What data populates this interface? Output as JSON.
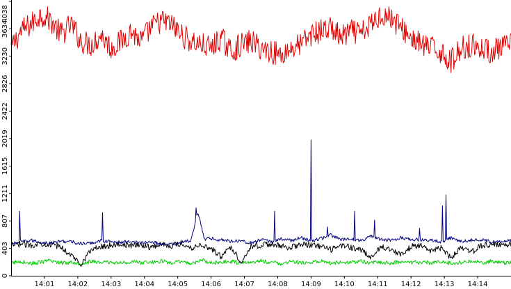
{
  "chart_data": {
    "type": "line",
    "title": "",
    "xlabel": "",
    "ylabel": "",
    "x_unit": "minutes",
    "xlim": [
      0.0,
      15.0
    ],
    "ylim": [
      0,
      4038
    ],
    "grid": false,
    "legend": "none",
    "x_tick_labels": [
      "14:01",
      "14:02",
      "14:03",
      "14:04",
      "14:05",
      "14:06",
      "14:07",
      "14:08",
      "14:09",
      "14:10",
      "14:11",
      "14:12",
      "14:13",
      "14:14"
    ],
    "x_tick_values": [
      1,
      2,
      3,
      4,
      5,
      6,
      7,
      8,
      9,
      10,
      11,
      12,
      13,
      14
    ],
    "y_tick_labels": [
      "0",
      "403",
      "807",
      "1211",
      "1615",
      "2019",
      "2422",
      "2826",
      "3230",
      "3634",
      "4038"
    ],
    "y_tick_values": [
      0,
      403,
      807,
      1211,
      1615,
      2019,
      2422,
      2826,
      3230,
      3634,
      4038
    ],
    "series_colors": [
      "#e00000",
      "#000080",
      "#000000",
      "#00cc00"
    ],
    "series": [
      {
        "color": "#e00000",
        "x": [
          0.0,
          0.3,
          0.6,
          0.9,
          1.2,
          1.5,
          1.8,
          2.1,
          2.4,
          2.7,
          3.0,
          3.3,
          3.6,
          3.9,
          4.2,
          4.5,
          4.8,
          5.1,
          5.4,
          5.7,
          6.0,
          6.3,
          6.6,
          6.9,
          7.2,
          7.5,
          7.8,
          8.1,
          8.4,
          8.7,
          9.0,
          9.3,
          9.6,
          9.9,
          10.2,
          10.5,
          10.8,
          11.1,
          11.4,
          11.7,
          12.0,
          12.3,
          12.6,
          12.9,
          13.2,
          13.5,
          13.8,
          14.1,
          14.4,
          14.7,
          15.0
        ],
        "values": [
          3350,
          3600,
          3700,
          3850,
          3750,
          3550,
          3700,
          3450,
          3400,
          3550,
          3350,
          3450,
          3600,
          3450,
          3650,
          3750,
          3700,
          3550,
          3450,
          3400,
          3350,
          3500,
          3300,
          3400,
          3450,
          3350,
          3300,
          3250,
          3350,
          3400,
          3550,
          3600,
          3650,
          3500,
          3600,
          3550,
          3700,
          3850,
          3800,
          3650,
          3500,
          3400,
          3350,
          3300,
          3150,
          3350,
          3400,
          3350,
          3300,
          3350,
          3400
        ]
      },
      {
        "color": "#000080",
        "x": [
          0.0,
          0.3,
          0.6,
          0.9,
          1.2,
          1.5,
          1.8,
          2.1,
          2.4,
          2.7,
          3.0,
          3.3,
          3.6,
          3.9,
          4.2,
          4.5,
          4.8,
          5.1,
          5.4,
          5.6,
          5.8,
          6.0,
          6.3,
          6.6,
          6.9,
          7.2,
          7.5,
          7.8,
          8.1,
          8.4,
          8.7,
          9.0,
          9.3,
          9.6,
          9.9,
          10.2,
          10.5,
          10.8,
          11.1,
          11.4,
          11.7,
          12.0,
          12.3,
          12.6,
          12.9,
          13.2,
          13.5,
          13.8,
          14.1,
          14.4,
          14.7,
          15.0
        ],
        "values": [
          470,
          500,
          520,
          490,
          480,
          510,
          500,
          470,
          480,
          520,
          500,
          490,
          510,
          480,
          500,
          470,
          460,
          490,
          520,
          950,
          540,
          550,
          530,
          510,
          520,
          480,
          530,
          500,
          540,
          520,
          560,
          510,
          550,
          600,
          530,
          540,
          520,
          580,
          530,
          520,
          560,
          540,
          530,
          520,
          500,
          560,
          510,
          520,
          530,
          500,
          510,
          520
        ],
        "spikes": [
          {
            "x": 0.25,
            "value": 950
          },
          {
            "x": 2.75,
            "value": 930
          },
          {
            "x": 5.55,
            "value": 1000
          },
          {
            "x": 7.9,
            "value": 950
          },
          {
            "x": 9.0,
            "value": 2000
          },
          {
            "x": 9.5,
            "value": 720
          },
          {
            "x": 10.3,
            "value": 950
          },
          {
            "x": 10.9,
            "value": 820
          },
          {
            "x": 12.25,
            "value": 700
          },
          {
            "x": 12.95,
            "value": 1030
          },
          {
            "x": 13.05,
            "value": 1190
          }
        ]
      },
      {
        "color": "#000000",
        "x": [
          0.0,
          0.3,
          0.6,
          0.9,
          1.2,
          1.5,
          1.8,
          2.1,
          2.4,
          2.7,
          3.0,
          3.3,
          3.6,
          3.9,
          4.2,
          4.5,
          4.8,
          5.1,
          5.4,
          5.7,
          6.0,
          6.3,
          6.6,
          6.9,
          7.2,
          7.5,
          7.8,
          8.1,
          8.4,
          8.7,
          9.0,
          9.3,
          9.6,
          9.9,
          10.2,
          10.5,
          10.8,
          11.1,
          11.4,
          11.7,
          12.0,
          12.3,
          12.6,
          12.9,
          13.2,
          13.5,
          13.8,
          14.1,
          14.4,
          14.7,
          15.0
        ],
        "values": [
          440,
          470,
          450,
          480,
          460,
          420,
          300,
          180,
          380,
          430,
          450,
          470,
          440,
          460,
          420,
          470,
          440,
          480,
          410,
          460,
          400,
          280,
          430,
          200,
          440,
          450,
          470,
          430,
          420,
          460,
          450,
          430,
          380,
          450,
          420,
          380,
          260,
          430,
          400,
          300,
          430,
          460,
          350,
          410,
          260,
          420,
          340,
          440,
          460,
          450,
          470
        ]
      },
      {
        "color": "#00cc00",
        "x": [
          0.0,
          0.3,
          0.6,
          0.9,
          1.2,
          1.5,
          1.8,
          2.1,
          2.4,
          2.7,
          3.0,
          3.3,
          3.6,
          3.9,
          4.2,
          4.5,
          4.8,
          5.1,
          5.4,
          5.7,
          6.0,
          6.3,
          6.6,
          6.9,
          7.2,
          7.5,
          7.8,
          8.1,
          8.4,
          8.7,
          9.0,
          9.3,
          9.6,
          9.9,
          10.2,
          10.5,
          10.8,
          11.1,
          11.4,
          11.7,
          12.0,
          12.3,
          12.6,
          12.9,
          13.2,
          13.5,
          13.8,
          14.1,
          14.4,
          14.7,
          15.0
        ],
        "values": [
          190,
          210,
          180,
          200,
          220,
          190,
          200,
          180,
          210,
          195,
          200,
          185,
          210,
          190,
          200,
          215,
          190,
          205,
          180,
          230,
          190,
          200,
          210,
          185,
          200,
          220,
          195,
          180,
          205,
          190,
          200,
          210,
          185,
          200,
          195,
          215,
          190,
          200,
          185,
          205,
          195,
          200,
          190,
          210,
          180,
          200,
          205,
          195,
          210,
          190,
          200
        ]
      }
    ]
  }
}
